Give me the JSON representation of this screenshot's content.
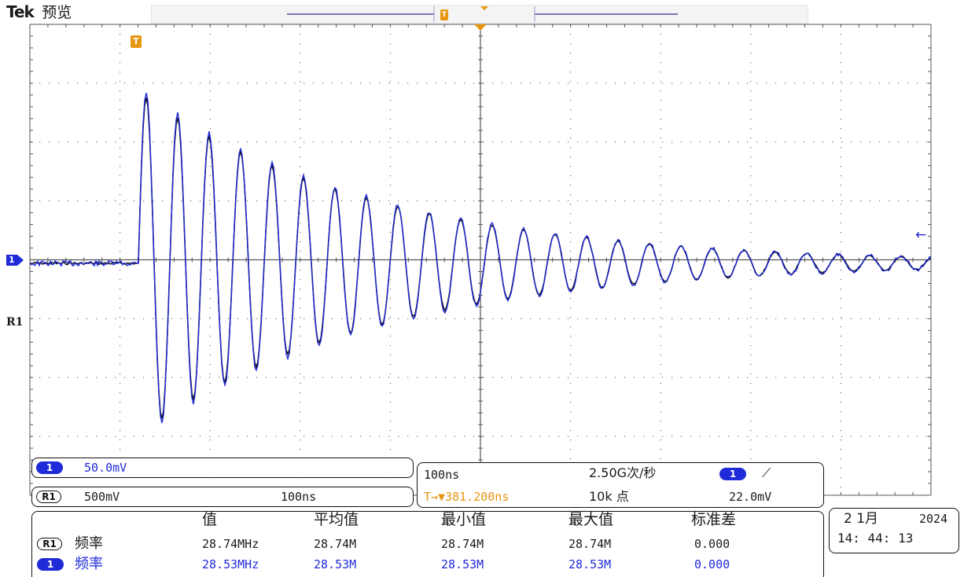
{
  "header": {
    "brand": "Tek",
    "mode": "预览"
  },
  "markers": {
    "trigger": "T",
    "ch1": "1",
    "ref": "R1",
    "ch1_level_arrow": "←"
  },
  "colors": {
    "ch1": "#1f2ad8",
    "ref1": "#111111",
    "trigger": "#e8950f",
    "grid": "#555555"
  },
  "ch1_info": {
    "badge": "1",
    "scale": "50.0mV"
  },
  "ref_info": {
    "badge": "R1",
    "scale": "500mV",
    "time": "100ns"
  },
  "timebase": {
    "horizontal": "100ns",
    "sample_rate": "2.50G次/秒",
    "trigger_delay_label": "T→▼381.200ns",
    "record_length": "10k 点",
    "trigger_source": "1",
    "trigger_slope": "⟋",
    "trigger_level": "22.0mV"
  },
  "measurements": {
    "headers": [
      "值",
      "平均值",
      "最小值",
      "最大值",
      "标准差"
    ],
    "rows": [
      {
        "badge": "R1",
        "label": "频率",
        "value": "28.74MHz",
        "mean": "28.74M",
        "min": "28.74M",
        "max": "28.74M",
        "std": "0.000"
      },
      {
        "badge": "1",
        "label": "频率",
        "value": "28.53MHz",
        "mean": "28.53M",
        "min": "28.53M",
        "max": "28.53M",
        "std": "0.000"
      }
    ]
  },
  "datetime": {
    "date_day_month": "2 1月",
    "year": "2024",
    "time": "14: 44: 13"
  }
}
